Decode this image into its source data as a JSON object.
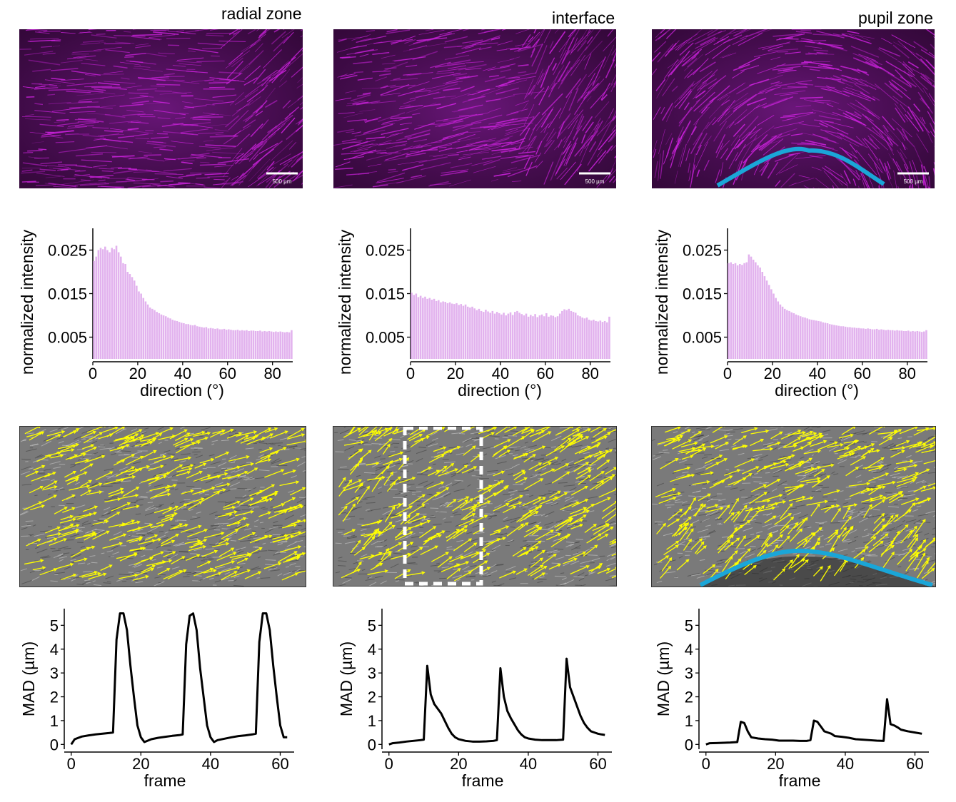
{
  "columns": [
    {
      "title": "radial zone",
      "scale_label": "500 µm"
    },
    {
      "title": "interface",
      "scale_label": "500 µm"
    },
    {
      "title": "pupil zone",
      "scale_label": "500 µm"
    }
  ],
  "colors": {
    "fiber": "#cc22dd",
    "histogram": "#e2b2ee",
    "arrows": "#ffff00",
    "boundary": "#1aa6d8",
    "line": "#000000"
  },
  "chart_data": [
    {
      "type": "bar",
      "panel": "radial zone",
      "xlabel": "direction (°)",
      "ylabel": "normalized intensity",
      "xticks": [
        0,
        20,
        40,
        60,
        80
      ],
      "yticks": [
        "0.005",
        "0.015",
        "0.025"
      ],
      "xlim": [
        0,
        89
      ],
      "ylim": [
        0,
        0.03
      ],
      "x_start": 0,
      "x_step": 1,
      "values": [
        0.0225,
        0.0235,
        0.025,
        0.0255,
        0.0252,
        0.0258,
        0.025,
        0.0245,
        0.0255,
        0.0252,
        0.026,
        0.0245,
        0.0235,
        0.022,
        0.0218,
        0.02,
        0.0195,
        0.0188,
        0.018,
        0.0168,
        0.0155,
        0.015,
        0.014,
        0.0132,
        0.0125,
        0.0118,
        0.0115,
        0.0112,
        0.0108,
        0.0105,
        0.0102,
        0.01,
        0.0098,
        0.0095,
        0.0093,
        0.009,
        0.0088,
        0.0087,
        0.0085,
        0.0083,
        0.0082,
        0.008,
        0.008,
        0.0078,
        0.0077,
        0.0078,
        0.0075,
        0.0074,
        0.0073,
        0.0072,
        0.0073,
        0.007,
        0.0071,
        0.007,
        0.0069,
        0.007,
        0.0068,
        0.0068,
        0.0069,
        0.0067,
        0.0068,
        0.0067,
        0.0066,
        0.0066,
        0.0067,
        0.0065,
        0.0066,
        0.0065,
        0.0066,
        0.0064,
        0.0065,
        0.0065,
        0.0064,
        0.0064,
        0.0065,
        0.0063,
        0.0064,
        0.0063,
        0.0064,
        0.0063,
        0.0062,
        0.0063,
        0.0062,
        0.0063,
        0.0062,
        0.0061,
        0.0062,
        0.0061,
        0.0066
      ]
    },
    {
      "type": "bar",
      "panel": "interface",
      "xlabel": "direction (°)",
      "ylabel": "normalized intensity",
      "xticks": [
        0,
        20,
        40,
        60,
        80
      ],
      "yticks": [
        "0.005",
        "0.015",
        "0.025"
      ],
      "xlim": [
        0,
        89
      ],
      "ylim": [
        0,
        0.03
      ],
      "x_start": 0,
      "x_step": 1,
      "values": [
        0.0152,
        0.0147,
        0.015,
        0.0142,
        0.0145,
        0.014,
        0.0143,
        0.0138,
        0.014,
        0.0136,
        0.0138,
        0.0133,
        0.0135,
        0.013,
        0.0132,
        0.0131,
        0.0128,
        0.013,
        0.0127,
        0.0126,
        0.0128,
        0.0124,
        0.0126,
        0.0122,
        0.0125,
        0.012,
        0.0118,
        0.012,
        0.0116,
        0.0112,
        0.0115,
        0.011,
        0.0108,
        0.0113,
        0.0109,
        0.0106,
        0.011,
        0.0104,
        0.0108,
        0.0105,
        0.0102,
        0.0106,
        0.01,
        0.0104,
        0.0107,
        0.0101,
        0.0108,
        0.011,
        0.0106,
        0.0103,
        0.01,
        0.0104,
        0.0097,
        0.0101,
        0.0098,
        0.0103,
        0.0096,
        0.01,
        0.0102,
        0.0098,
        0.0105,
        0.0097,
        0.01,
        0.0099,
        0.0096,
        0.0098,
        0.0104,
        0.011,
        0.0114,
        0.0112,
        0.0115,
        0.011,
        0.0108,
        0.0106,
        0.01,
        0.0098,
        0.0095,
        0.0093,
        0.0095,
        0.009,
        0.0088,
        0.009,
        0.0087,
        0.0086,
        0.0088,
        0.0085,
        0.0087,
        0.0084,
        0.0097
      ]
    },
    {
      "type": "bar",
      "panel": "pupil zone",
      "xlabel": "direction (°)",
      "ylabel": "normalized intensity",
      "xticks": [
        0,
        20,
        40,
        60,
        80
      ],
      "yticks": [
        "0.005",
        "0.015",
        "0.025"
      ],
      "xlim": [
        0,
        89
      ],
      "ylim": [
        0,
        0.03
      ],
      "x_start": 0,
      "x_step": 1,
      "values": [
        0.022,
        0.0222,
        0.0218,
        0.022,
        0.0215,
        0.0218,
        0.0216,
        0.022,
        0.0222,
        0.024,
        0.0235,
        0.0228,
        0.0222,
        0.0215,
        0.021,
        0.02,
        0.019,
        0.018,
        0.017,
        0.016,
        0.015,
        0.014,
        0.0132,
        0.0125,
        0.012,
        0.0115,
        0.0112,
        0.011,
        0.0107,
        0.0105,
        0.0102,
        0.01,
        0.0098,
        0.0096,
        0.0095,
        0.0093,
        0.0091,
        0.009,
        0.0089,
        0.0088,
        0.0087,
        0.0086,
        0.0084,
        0.0083,
        0.0082,
        0.008,
        0.0079,
        0.0078,
        0.0077,
        0.0076,
        0.0075,
        0.0075,
        0.0074,
        0.0073,
        0.0073,
        0.0072,
        0.0072,
        0.0071,
        0.0071,
        0.007,
        0.007,
        0.0069,
        0.007,
        0.0069,
        0.0068,
        0.0068,
        0.0069,
        0.0067,
        0.0068,
        0.0067,
        0.0066,
        0.0067,
        0.0066,
        0.0066,
        0.0065,
        0.0066,
        0.0065,
        0.0065,
        0.0064,
        0.0064,
        0.0065,
        0.0063,
        0.0064,
        0.0063,
        0.0064,
        0.0063,
        0.0062,
        0.0063,
        0.0066
      ]
    },
    {
      "type": "line",
      "panel": "radial zone",
      "xlabel": "frame",
      "ylabel": "MAD (µm)",
      "xticks": [
        0,
        20,
        40,
        60
      ],
      "yticks": [
        0,
        1,
        2,
        3,
        4,
        5
      ],
      "xlim": [
        -2,
        64
      ],
      "ylim": [
        -0.2,
        5.7
      ],
      "x": [
        0,
        1,
        3,
        5,
        7,
        9,
        11,
        12,
        13,
        14,
        15,
        16,
        17,
        18,
        19,
        20,
        21,
        23,
        25,
        27,
        29,
        31,
        32,
        33,
        34,
        35,
        36,
        37,
        38,
        39,
        40,
        41,
        42,
        44,
        46,
        48,
        50,
        52,
        53,
        54,
        55,
        56,
        57,
        58,
        59,
        60,
        61,
        62
      ],
      "values": [
        0,
        0.22,
        0.33,
        0.38,
        0.42,
        0.45,
        0.48,
        0.5,
        4.4,
        5.5,
        5.5,
        4.8,
        3.3,
        2.0,
        0.8,
        0.3,
        0.1,
        0.22,
        0.28,
        0.32,
        0.36,
        0.39,
        0.42,
        4.2,
        5.4,
        5.5,
        4.8,
        3.2,
        2.0,
        0.8,
        0.3,
        0.1,
        0.18,
        0.24,
        0.3,
        0.35,
        0.38,
        0.42,
        0.45,
        4.3,
        5.5,
        5.5,
        4.8,
        3.3,
        2.0,
        0.8,
        0.3,
        0.3
      ]
    },
    {
      "type": "line",
      "panel": "interface",
      "xlabel": "frame",
      "ylabel": "MAD (µm)",
      "xticks": [
        0,
        20,
        40,
        60
      ],
      "yticks": [
        0,
        1,
        2,
        3,
        4,
        5
      ],
      "xlim": [
        -2,
        64
      ],
      "ylim": [
        -0.2,
        5.7
      ],
      "x": [
        0,
        1,
        3,
        5,
        7,
        9,
        10,
        11,
        12,
        13,
        14,
        15,
        16,
        17,
        18,
        19,
        20,
        22,
        24,
        26,
        28,
        30,
        31,
        32,
        33,
        34,
        35,
        36,
        37,
        38,
        39,
        40,
        42,
        44,
        46,
        48,
        50,
        51,
        52,
        53,
        54,
        55,
        56,
        57,
        58,
        59,
        60,
        61,
        62
      ],
      "values": [
        0,
        0.05,
        0.08,
        0.12,
        0.15,
        0.18,
        0.2,
        3.3,
        2.1,
        1.7,
        1.5,
        1.3,
        1.0,
        0.7,
        0.45,
        0.3,
        0.22,
        0.15,
        0.12,
        0.12,
        0.13,
        0.15,
        0.18,
        3.2,
        2.0,
        1.4,
        1.1,
        0.85,
        0.6,
        0.42,
        0.3,
        0.25,
        0.2,
        0.18,
        0.18,
        0.18,
        0.2,
        3.6,
        2.4,
        2.0,
        1.6,
        1.2,
        0.9,
        0.7,
        0.55,
        0.5,
        0.45,
        0.42,
        0.4
      ]
    },
    {
      "type": "line",
      "panel": "pupil zone",
      "xlabel": "frame",
      "ylabel": "MAD (µm)",
      "xticks": [
        0,
        20,
        40,
        60
      ],
      "yticks": [
        0,
        1,
        2,
        3,
        4,
        5
      ],
      "xlim": [
        -2,
        64
      ],
      "ylim": [
        -0.2,
        5.7
      ],
      "x": [
        0,
        1,
        3,
        5,
        7,
        9,
        10,
        11,
        12,
        13,
        15,
        17,
        19,
        21,
        23,
        25,
        27,
        29,
        30,
        31,
        32,
        33,
        34,
        35,
        36,
        37,
        39,
        41,
        43,
        45,
        47,
        49,
        51,
        52,
        53,
        54,
        55,
        56,
        58,
        60,
        62
      ],
      "values": [
        0,
        0.05,
        0.06,
        0.07,
        0.08,
        0.1,
        0.95,
        0.9,
        0.55,
        0.3,
        0.25,
        0.22,
        0.2,
        0.16,
        0.16,
        0.16,
        0.15,
        0.15,
        0.18,
        1.0,
        0.95,
        0.75,
        0.55,
        0.5,
        0.45,
        0.35,
        0.32,
        0.28,
        0.22,
        0.2,
        0.18,
        0.16,
        0.15,
        1.9,
        0.85,
        0.8,
        0.72,
        0.62,
        0.55,
        0.5,
        0.45
      ]
    }
  ]
}
